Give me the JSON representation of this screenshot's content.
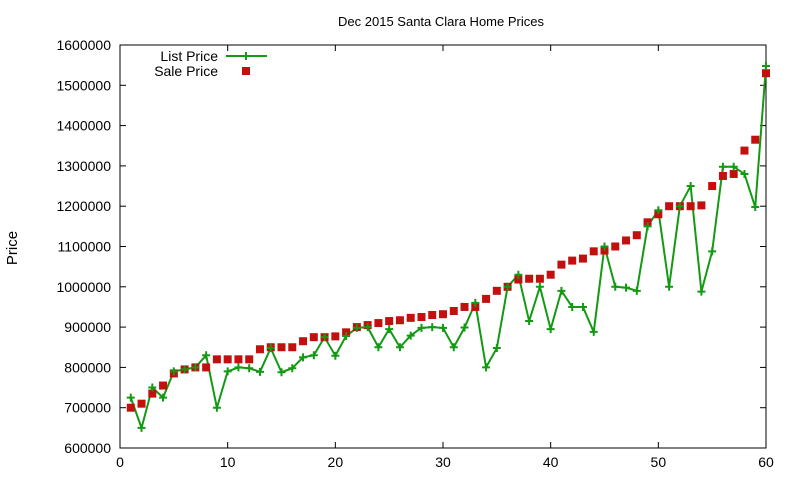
{
  "chart_data": {
    "type": "line",
    "title": "Dec 2015 Santa Clara Home Prices",
    "xlabel": "",
    "ylabel": "Price",
    "xlim": [
      0,
      60
    ],
    "ylim": [
      600000,
      1600000
    ],
    "x_ticks": [
      "0",
      "10",
      "20",
      "30",
      "40",
      "50",
      "60"
    ],
    "y_ticks": [
      "600000",
      "700000",
      "800000",
      "900000",
      "1000000",
      "1100000",
      "1200000",
      "1300000",
      "1400000",
      "1500000",
      "1600000"
    ],
    "grid": false,
    "legend_position": "top-left",
    "x": [
      1,
      2,
      3,
      4,
      5,
      6,
      7,
      8,
      9,
      10,
      11,
      12,
      13,
      14,
      15,
      16,
      17,
      18,
      19,
      20,
      21,
      22,
      23,
      24,
      25,
      26,
      27,
      28,
      29,
      30,
      31,
      32,
      33,
      34,
      35,
      36,
      37,
      38,
      39,
      40,
      41,
      42,
      43,
      44,
      45,
      46,
      47,
      48,
      49,
      50,
      51,
      52,
      53,
      54,
      55,
      56,
      57,
      58,
      59,
      60
    ],
    "series": [
      {
        "name": "List Price",
        "style": "linespoints",
        "color": "#139a13",
        "values": [
          725000,
          650000,
          750000,
          725000,
          790000,
          795000,
          800000,
          830000,
          700000,
          790000,
          800000,
          798000,
          789000,
          848000,
          788000,
          798000,
          825000,
          830000,
          875000,
          829000,
          878000,
          898000,
          900000,
          850000,
          895000,
          850000,
          879000,
          898000,
          900000,
          898000,
          850000,
          899000,
          960000,
          800000,
          848000,
          1000000,
          1030000,
          915000,
          1000000,
          895000,
          990000,
          950000,
          950000,
          888000,
          1100000,
          1000000,
          998000,
          990000,
          1150000,
          1190000,
          1000000,
          1200000,
          1250000,
          988000,
          1088000,
          1298000,
          1298000,
          1280000,
          1198000,
          1548000
        ]
      },
      {
        "name": "Sale Price",
        "style": "points",
        "color": "#c40f0f",
        "values": [
          700000,
          710000,
          735000,
          755000,
          785000,
          795000,
          800000,
          800000,
          820000,
          820000,
          820000,
          820000,
          845000,
          850000,
          850000,
          850000,
          865000,
          875000,
          875000,
          877000,
          887000,
          900000,
          905000,
          910000,
          915000,
          917000,
          923000,
          925000,
          930000,
          932000,
          940000,
          950000,
          950000,
          970000,
          990000,
          1000000,
          1018000,
          1020000,
          1020000,
          1030000,
          1055000,
          1065000,
          1070000,
          1088000,
          1090000,
          1100000,
          1115000,
          1128000,
          1160000,
          1180000,
          1200000,
          1200000,
          1200000,
          1202000,
          1250000,
          1275000,
          1280000,
          1338000,
          1365000,
          1530000
        ]
      }
    ]
  }
}
